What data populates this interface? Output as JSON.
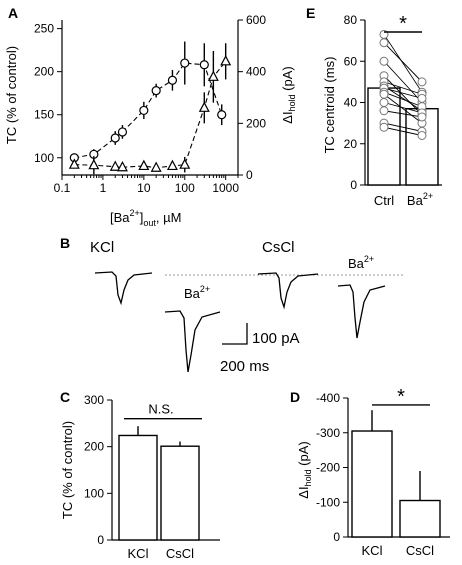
{
  "chart_data": [
    {
      "panel": "A",
      "type": "scatter",
      "xscale": "log",
      "xlim": [
        0.1,
        2000
      ],
      "xticks": [
        "0.1",
        "1",
        "10",
        "100",
        "1000"
      ],
      "xlabel_main": "[Ba",
      "xlabel_sup": "2+",
      "xlabel_sub": "out",
      "xlabel_unit": ", µM",
      "ylabel_left": "TC (% of control)",
      "ylim_left": [
        80,
        260
      ],
      "yticks_left": [
        "100",
        "150",
        "200",
        "250"
      ],
      "ylabel_right_main": "ΔI",
      "ylabel_right_sub": "hold",
      "ylabel_right_unit": " (pA)",
      "ylim_right": [
        0,
        600
      ],
      "yticks_right": [
        "0",
        "200",
        "400",
        "600"
      ],
      "series": [
        {
          "marker": "circle",
          "axis": "left",
          "x": [
            0.2,
            0.6,
            2,
            3,
            10,
            20,
            50,
            100,
            300,
            800
          ],
          "y": [
            100,
            104,
            123,
            130,
            155,
            178,
            190,
            210,
            208,
            150
          ],
          "err": [
            4,
            6,
            8,
            8,
            10,
            8,
            12,
            25,
            25,
            12
          ]
        },
        {
          "marker": "triangle",
          "axis": "right",
          "x": [
            0.2,
            0.6,
            2,
            3,
            10,
            20,
            50,
            100,
            300,
            500,
            1000
          ],
          "y": [
            40,
            38,
            32,
            30,
            35,
            28,
            35,
            40,
            260,
            380,
            440
          ],
          "err": [
            0,
            35,
            0,
            0,
            0,
            0,
            0,
            30,
            60,
            100,
            70
          ]
        }
      ]
    },
    {
      "panel": "E",
      "type": "bar",
      "categories": [
        "Ctrl",
        "Ba"
      ],
      "category_sup": [
        "",
        "2+"
      ],
      "values": [
        47,
        37
      ],
      "ylabel": "TC centroid (ms)",
      "ylim": [
        0,
        80
      ],
      "yticks": [
        "0",
        "20",
        "40",
        "60",
        "80"
      ],
      "significance": "*",
      "pairs": [
        [
          73,
          45
        ],
        [
          69,
          50
        ],
        [
          60,
          40
        ],
        [
          53,
          34
        ],
        [
          50,
          44
        ],
        [
          48,
          36
        ],
        [
          47,
          42
        ],
        [
          45,
          38
        ],
        [
          44,
          30
        ],
        [
          40,
          35
        ],
        [
          36,
          33
        ],
        [
          30,
          26
        ],
        [
          28,
          24
        ]
      ]
    },
    {
      "panel": "C",
      "type": "bar",
      "categories": [
        "KCl",
        "CsCl"
      ],
      "values": [
        224,
        201
      ],
      "err": [
        20,
        10
      ],
      "ylabel": "TC (% of control)",
      "ylim": [
        0,
        300
      ],
      "yticks": [
        "0",
        "100",
        "200",
        "300"
      ],
      "significance": "N.S."
    },
    {
      "panel": "D",
      "type": "bar",
      "categories": [
        "KCl",
        "CsCl"
      ],
      "values": [
        -305,
        -105
      ],
      "err": [
        60,
        85
      ],
      "ylabel_main": "ΔI",
      "ylabel_sub": "hold",
      "ylabel_unit": " (pA)",
      "ylim": [
        0,
        -400
      ],
      "yticks": [
        "0",
        "-100",
        "-200",
        "-300",
        "-400"
      ],
      "significance": "*"
    }
  ],
  "panel_b": {
    "label": "B",
    "kcl_label": "KCl",
    "cscl_label": "CsCl",
    "ba_label": "Ba",
    "ba_sup": "2+",
    "scale_current": "100 pA",
    "scale_time": "200 ms"
  },
  "panel_labels": {
    "a": "A",
    "c": "C",
    "d": "D",
    "e": "E"
  }
}
